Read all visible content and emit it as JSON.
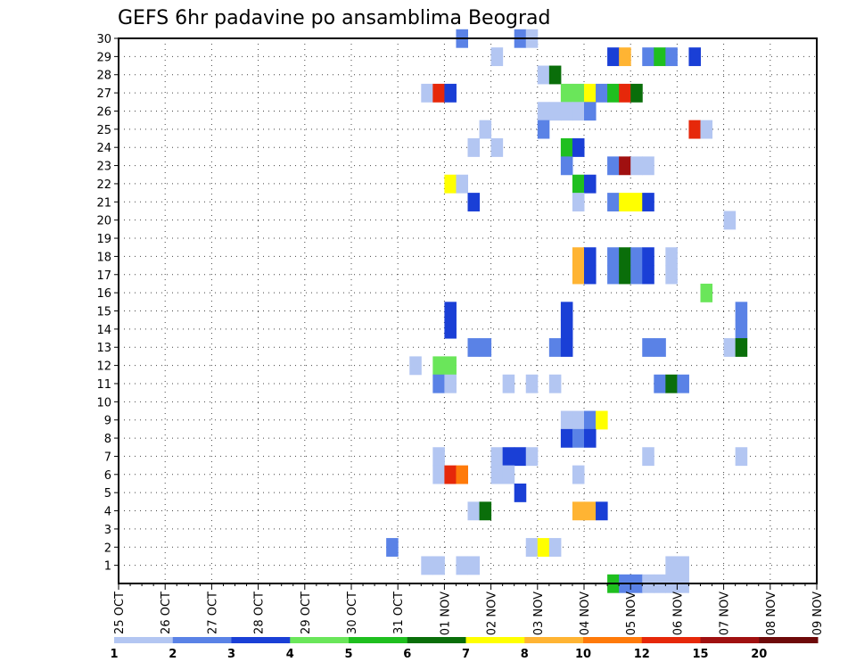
{
  "chart_data": {
    "type": "heatmap",
    "title": "GEFS 6hr padavine po ansamblima Beograd",
    "xlabel": "",
    "ylabel": "",
    "x_tick_labels": [
      "25 OCT",
      "26 OCT",
      "27 OCT",
      "28 OCT",
      "29 OCT",
      "30 OCT",
      "31 OCT",
      "01 NOV",
      "02 NOV",
      "03 NOV",
      "04 NOV",
      "05 NOV",
      "06 NOV",
      "07 NOV",
      "08 NOV",
      "09 NOV"
    ],
    "y_tick_labels": [
      "1",
      "2",
      "3",
      "4",
      "5",
      "6",
      "7",
      "8",
      "9",
      "10",
      "11",
      "12",
      "13",
      "14",
      "15",
      "16",
      "17",
      "18",
      "19",
      "20",
      "21",
      "22",
      "23",
      "24",
      "25",
      "26",
      "27",
      "28",
      "29",
      "30"
    ],
    "x_range_steps": [
      0,
      60
    ],
    "y_range": [
      0,
      30
    ],
    "grid": true,
    "legend_placement": "bottom",
    "legend_levels": [
      "1",
      "2",
      "3",
      "4",
      "5",
      "6",
      "7",
      "8",
      "10",
      "12",
      "15",
      "20"
    ],
    "level_colors": [
      "#b3c6f2",
      "#5a82e6",
      "#1a3fd6",
      "#6ae65a",
      "#1fbf1f",
      "#0a6e0a",
      "#ffff00",
      "#ffb433",
      "#ff7a0a",
      "#e6280a",
      "#a01010",
      "#6e0a0a"
    ],
    "cells_note": "Each cell: step t = 6-hour step index from 25 OCT 00Z, member m = ensemble member, c = colour class index (0 = 1-2 mm ... 11 = >20 mm)",
    "cells": [
      {
        "t": 29,
        "m": 30,
        "c": 1
      },
      {
        "t": 34,
        "m": 30,
        "c": 1
      },
      {
        "t": 35,
        "m": 30,
        "c": 0
      },
      {
        "t": 32,
        "m": 29,
        "c": 0
      },
      {
        "t": 42,
        "m": 29,
        "c": 2
      },
      {
        "t": 43,
        "m": 29,
        "c": 7
      },
      {
        "t": 45,
        "m": 29,
        "c": 1
      },
      {
        "t": 46,
        "m": 29,
        "c": 4
      },
      {
        "t": 47,
        "m": 29,
        "c": 1
      },
      {
        "t": 49,
        "m": 29,
        "c": 2
      },
      {
        "t": 36,
        "m": 28,
        "c": 0
      },
      {
        "t": 37,
        "m": 28,
        "c": 5
      },
      {
        "t": 26,
        "m": 27,
        "c": 0
      },
      {
        "t": 27,
        "m": 27,
        "c": 9
      },
      {
        "t": 28,
        "m": 27,
        "c": 2
      },
      {
        "t": 38,
        "m": 27,
        "c": 3
      },
      {
        "t": 39,
        "m": 27,
        "c": 3
      },
      {
        "t": 40,
        "m": 27,
        "c": 6
      },
      {
        "t": 41,
        "m": 27,
        "c": 1
      },
      {
        "t": 42,
        "m": 27,
        "c": 4
      },
      {
        "t": 43,
        "m": 27,
        "c": 9
      },
      {
        "t": 44,
        "m": 27,
        "c": 5
      },
      {
        "t": 36,
        "m": 26,
        "c": 0
      },
      {
        "t": 37,
        "m": 26,
        "c": 0
      },
      {
        "t": 38,
        "m": 26,
        "c": 0
      },
      {
        "t": 39,
        "m": 26,
        "c": 0
      },
      {
        "t": 40,
        "m": 26,
        "c": 1
      },
      {
        "t": 31,
        "m": 25,
        "c": 0
      },
      {
        "t": 36,
        "m": 25,
        "c": 1
      },
      {
        "t": 49,
        "m": 25,
        "c": 9
      },
      {
        "t": 50,
        "m": 25,
        "c": 0
      },
      {
        "t": 30,
        "m": 24,
        "c": 0
      },
      {
        "t": 32,
        "m": 24,
        "c": 0
      },
      {
        "t": 38,
        "m": 24,
        "c": 4
      },
      {
        "t": 39,
        "m": 24,
        "c": 2
      },
      {
        "t": 38,
        "m": 23,
        "c": 1
      },
      {
        "t": 42,
        "m": 23,
        "c": 1
      },
      {
        "t": 43,
        "m": 23,
        "c": 10
      },
      {
        "t": 44,
        "m": 23,
        "c": 0
      },
      {
        "t": 45,
        "m": 23,
        "c": 0
      },
      {
        "t": 28,
        "m": 22,
        "c": 6
      },
      {
        "t": 29,
        "m": 22,
        "c": 0
      },
      {
        "t": 39,
        "m": 22,
        "c": 4
      },
      {
        "t": 40,
        "m": 22,
        "c": 2
      },
      {
        "t": 30,
        "m": 21,
        "c": 2
      },
      {
        "t": 39,
        "m": 21,
        "c": 0
      },
      {
        "t": 42,
        "m": 21,
        "c": 1
      },
      {
        "t": 43,
        "m": 21,
        "c": 6
      },
      {
        "t": 44,
        "m": 21,
        "c": 6
      },
      {
        "t": 45,
        "m": 21,
        "c": 2
      },
      {
        "t": 52,
        "m": 20,
        "c": 0
      },
      {
        "t": 39,
        "m": 18,
        "c": 7
      },
      {
        "t": 40,
        "m": 18,
        "c": 2
      },
      {
        "t": 42,
        "m": 18,
        "c": 1
      },
      {
        "t": 43,
        "m": 18,
        "c": 5
      },
      {
        "t": 44,
        "m": 18,
        "c": 1
      },
      {
        "t": 45,
        "m": 18,
        "c": 2
      },
      {
        "t": 47,
        "m": 18,
        "c": 0
      },
      {
        "t": 39,
        "m": 17,
        "c": 7
      },
      {
        "t": 40,
        "m": 17,
        "c": 2
      },
      {
        "t": 42,
        "m": 17,
        "c": 1
      },
      {
        "t": 43,
        "m": 17,
        "c": 5
      },
      {
        "t": 44,
        "m": 17,
        "c": 1
      },
      {
        "t": 45,
        "m": 17,
        "c": 2
      },
      {
        "t": 47,
        "m": 17,
        "c": 0
      },
      {
        "t": 50,
        "m": 16,
        "c": 3
      },
      {
        "t": 28,
        "m": 15,
        "c": 2
      },
      {
        "t": 38,
        "m": 15,
        "c": 2
      },
      {
        "t": 53,
        "m": 15,
        "c": 1
      },
      {
        "t": 28,
        "m": 14,
        "c": 2
      },
      {
        "t": 38,
        "m": 14,
        "c": 2
      },
      {
        "t": 53,
        "m": 14,
        "c": 1
      },
      {
        "t": 30,
        "m": 13,
        "c": 1
      },
      {
        "t": 31,
        "m": 13,
        "c": 1
      },
      {
        "t": 37,
        "m": 13,
        "c": 1
      },
      {
        "t": 38,
        "m": 13,
        "c": 2
      },
      {
        "t": 45,
        "m": 13,
        "c": 1
      },
      {
        "t": 46,
        "m": 13,
        "c": 1
      },
      {
        "t": 52,
        "m": 13,
        "c": 0
      },
      {
        "t": 53,
        "m": 13,
        "c": 5
      },
      {
        "t": 25,
        "m": 12,
        "c": 0
      },
      {
        "t": 27,
        "m": 12,
        "c": 3
      },
      {
        "t": 28,
        "m": 12,
        "c": 3
      },
      {
        "t": 27,
        "m": 11,
        "c": 1
      },
      {
        "t": 28,
        "m": 11,
        "c": 0
      },
      {
        "t": 33,
        "m": 11,
        "c": 0
      },
      {
        "t": 35,
        "m": 11,
        "c": 0
      },
      {
        "t": 37,
        "m": 11,
        "c": 0
      },
      {
        "t": 46,
        "m": 11,
        "c": 1
      },
      {
        "t": 47,
        "m": 11,
        "c": 5
      },
      {
        "t": 48,
        "m": 11,
        "c": 1
      },
      {
        "t": 38,
        "m": 9,
        "c": 0
      },
      {
        "t": 39,
        "m": 9,
        "c": 0
      },
      {
        "t": 40,
        "m": 9,
        "c": 1
      },
      {
        "t": 41,
        "m": 9,
        "c": 6
      },
      {
        "t": 38,
        "m": 8,
        "c": 2
      },
      {
        "t": 39,
        "m": 8,
        "c": 1
      },
      {
        "t": 40,
        "m": 8,
        "c": 2
      },
      {
        "t": 27,
        "m": 7,
        "c": 0
      },
      {
        "t": 32,
        "m": 7,
        "c": 0
      },
      {
        "t": 33,
        "m": 7,
        "c": 2
      },
      {
        "t": 34,
        "m": 7,
        "c": 2
      },
      {
        "t": 35,
        "m": 7,
        "c": 0
      },
      {
        "t": 45,
        "m": 7,
        "c": 0
      },
      {
        "t": 53,
        "m": 7,
        "c": 0
      },
      {
        "t": 27,
        "m": 6,
        "c": 0
      },
      {
        "t": 28,
        "m": 6,
        "c": 9
      },
      {
        "t": 29,
        "m": 6,
        "c": 8
      },
      {
        "t": 32,
        "m": 6,
        "c": 0
      },
      {
        "t": 33,
        "m": 6,
        "c": 0
      },
      {
        "t": 39,
        "m": 6,
        "c": 0
      },
      {
        "t": 34,
        "m": 5,
        "c": 2
      },
      {
        "t": 30,
        "m": 4,
        "c": 0
      },
      {
        "t": 31,
        "m": 4,
        "c": 5
      },
      {
        "t": 39,
        "m": 4,
        "c": 7
      },
      {
        "t": 40,
        "m": 4,
        "c": 7
      },
      {
        "t": 41,
        "m": 4,
        "c": 2
      },
      {
        "t": 23,
        "m": 2,
        "c": 1
      },
      {
        "t": 35,
        "m": 2,
        "c": 0
      },
      {
        "t": 36,
        "m": 2,
        "c": 6
      },
      {
        "t": 37,
        "m": 2,
        "c": 0
      },
      {
        "t": 26,
        "m": 1,
        "c": 0
      },
      {
        "t": 27,
        "m": 1,
        "c": 0
      },
      {
        "t": 29,
        "m": 1,
        "c": 0
      },
      {
        "t": 30,
        "m": 1,
        "c": 0
      },
      {
        "t": 47,
        "m": 1,
        "c": 0
      },
      {
        "t": 48,
        "m": 1,
        "c": 0
      },
      {
        "t": 42,
        "m": 0,
        "c": 4
      },
      {
        "t": 43,
        "m": 0,
        "c": 1
      },
      {
        "t": 44,
        "m": 0,
        "c": 1
      },
      {
        "t": 45,
        "m": 0,
        "c": 0
      },
      {
        "t": 46,
        "m": 0,
        "c": 0
      },
      {
        "t": 47,
        "m": 0,
        "c": 0
      },
      {
        "t": 48,
        "m": 0,
        "c": 0
      }
    ]
  }
}
